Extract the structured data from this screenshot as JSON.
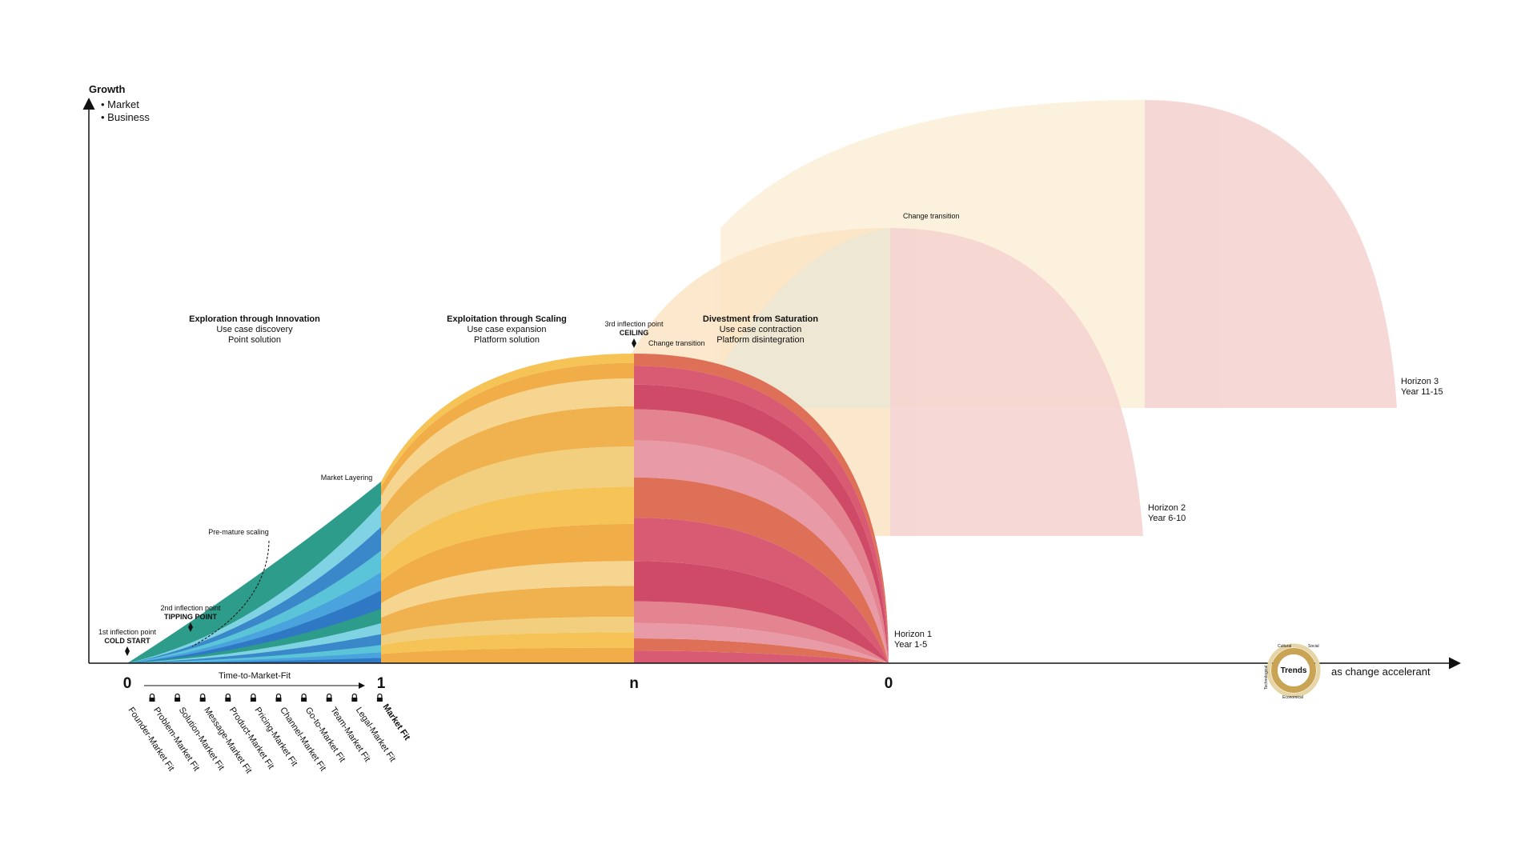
{
  "axis": {
    "y_title": "Growth",
    "y_items": [
      "• Market",
      "• Business"
    ],
    "x_caption": "as change accelerant",
    "ticks": [
      "0",
      "1",
      "n",
      "0"
    ],
    "ttmf_label": "Time-to-Market-Fit"
  },
  "phases": [
    {
      "title": "Exploration through Innovation",
      "line1": "Use case discovery",
      "line2": "Point solution"
    },
    {
      "title": "Exploitation through Scaling",
      "line1": "Use case expansion",
      "line2": "Platform solution"
    },
    {
      "title": "Divestment from Saturation",
      "line1": "Use case contraction",
      "line2": "Platform disintegration"
    }
  ],
  "annotations": {
    "first_inflection": {
      "line1": "1st inflection point",
      "line2": "COLD START"
    },
    "second_inflection": {
      "line1": "2nd inflection point",
      "line2": "TIPPING POINT"
    },
    "third_inflection": {
      "line1": "3rd inflection point",
      "line2": "CEILING"
    },
    "premature": "Pre-mature scaling",
    "market_layering": "Market Layering",
    "change_transition_1": "Change transition",
    "change_transition_2": "Change transition"
  },
  "horizons": [
    {
      "name": "Horizon 1",
      "years": "Year 1-5"
    },
    {
      "name": "Horizon 2",
      "years": "Year 6-10"
    },
    {
      "name": "Horizon 3",
      "years": "Year 11-15"
    }
  ],
  "fits": [
    "Founder-Market Fit",
    "Problem-Market Fit",
    "Solution-Market Fit",
    "Message-Market Fit",
    "Product-Market Fit",
    "Pricing-Market Fit",
    "Channel-Market Fit",
    "Go-to-Market Fit",
    "Team-Market Fit",
    "Legal-Market Fit"
  ],
  "market_fit": "Market Fit",
  "trends": {
    "label": "Trends",
    "ring_labels": [
      "Cultural",
      "Social",
      "Technological",
      "Economical"
    ]
  },
  "colors": {
    "blues": [
      "#2f78c4",
      "#4aa3dd",
      "#5bc4d8",
      "#3a88c9",
      "#7fd3e3",
      "#2d9c8a"
    ],
    "yellows": [
      "#f0ad48",
      "#f5c356",
      "#f2cf7e",
      "#efb24e",
      "#f6d590"
    ],
    "reds": [
      "#d95a73",
      "#de7058",
      "#e89aa6",
      "#e38490",
      "#cf4a66"
    ],
    "horizon2_fill": "#fbe5c4",
    "horizon3_fill": "#fcefd6",
    "horizon_pink": "#f4d2d0",
    "trends_gold": "#c9a454"
  }
}
